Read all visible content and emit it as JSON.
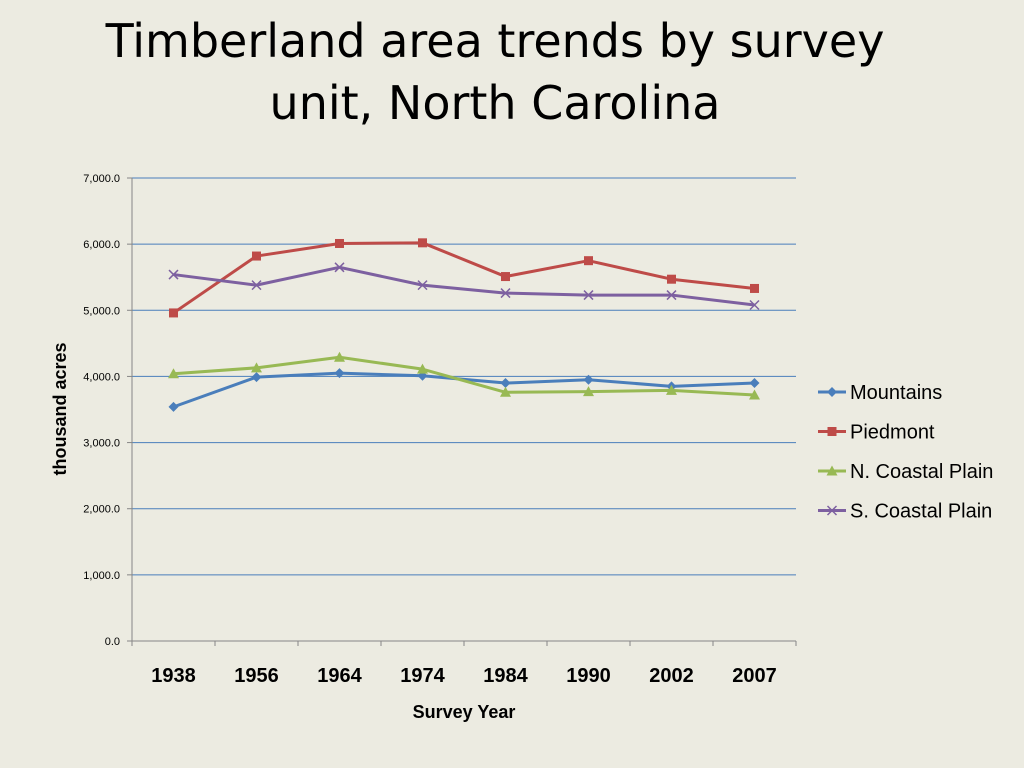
{
  "slide": {
    "title": "Timberland area trends by survey unit, North Carolina"
  },
  "chart_data": {
    "type": "line",
    "title": "",
    "xlabel": "Survey Year",
    "ylabel": "thousand acres",
    "categories": [
      "1938",
      "1956",
      "1964",
      "1974",
      "1984",
      "1990",
      "2002",
      "2007"
    ],
    "ylim": [
      0,
      7000
    ],
    "y_ticks": [
      "0.0",
      "1,000.0",
      "2,000.0",
      "3,000.0",
      "4,000.0",
      "5,000.0",
      "6,000.0",
      "7,000.0"
    ],
    "grid": true,
    "legend_position": "right",
    "series": [
      {
        "name": "Mountains",
        "color": "#4a7ebb",
        "marker": "diamond",
        "values": [
          3540,
          3990,
          4050,
          4010,
          3900,
          3950,
          3850,
          3900
        ]
      },
      {
        "name": "Piedmont",
        "color": "#be4b48",
        "marker": "square",
        "values": [
          4960,
          5820,
          6010,
          6020,
          5510,
          5750,
          5470,
          5330
        ]
      },
      {
        "name": "N. Coastal Plain",
        "color": "#98b954",
        "marker": "triangle",
        "values": [
          4040,
          4130,
          4290,
          4110,
          3760,
          3770,
          3790,
          3720
        ]
      },
      {
        "name": "S. Coastal Plain",
        "color": "#7d60a0",
        "marker": "x",
        "values": [
          5540,
          5380,
          5650,
          5380,
          5260,
          5230,
          5230,
          5080
        ]
      }
    ]
  }
}
